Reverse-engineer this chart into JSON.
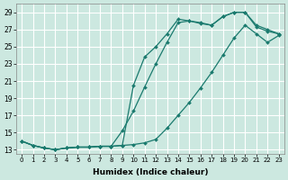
{
  "xlabel": "Humidex (Indice chaleur)",
  "bg_color": "#cce8e0",
  "grid_color": "#ffffff",
  "line_color": "#1a7a6e",
  "xlim": [
    -0.5,
    23.5
  ],
  "ylim": [
    12.5,
    30.0
  ],
  "xticks": [
    0,
    1,
    2,
    3,
    4,
    5,
    6,
    7,
    8,
    9,
    10,
    11,
    12,
    13,
    14,
    15,
    16,
    17,
    18,
    19,
    20,
    21,
    22,
    23
  ],
  "yticks": [
    13,
    15,
    17,
    19,
    21,
    23,
    25,
    27,
    29
  ],
  "line1_x": [
    0,
    1,
    2,
    3,
    4,
    5,
    6,
    7,
    8,
    9,
    10,
    11,
    12,
    13,
    14,
    15,
    16,
    17,
    18,
    19,
    20,
    21,
    22,
    23
  ],
  "line1_y": [
    14.0,
    13.5,
    13.2,
    13.0,
    13.2,
    13.3,
    13.3,
    13.4,
    13.4,
    13.5,
    13.6,
    13.8,
    14.2,
    15.5,
    17.0,
    18.5,
    20.2,
    22.0,
    24.0,
    26.0,
    27.5,
    26.5,
    25.5,
    26.3
  ],
  "line2_x": [
    0,
    1,
    2,
    3,
    4,
    5,
    6,
    7,
    8,
    9,
    10,
    11,
    12,
    13,
    14,
    15,
    16,
    17,
    18,
    19,
    20,
    21,
    22,
    23
  ],
  "line2_y": [
    14.0,
    13.5,
    13.2,
    13.0,
    13.2,
    13.3,
    13.3,
    13.4,
    13.4,
    15.2,
    17.5,
    20.3,
    23.0,
    25.5,
    27.8,
    28.0,
    27.8,
    27.5,
    28.5,
    29.0,
    29.0,
    27.5,
    27.0,
    26.5
  ],
  "line3_x": [
    0,
    1,
    2,
    3,
    4,
    5,
    6,
    7,
    8,
    9,
    10,
    11,
    12,
    13,
    14,
    15,
    16,
    17,
    18,
    19,
    20,
    21,
    22,
    23
  ],
  "line3_y": [
    14.0,
    13.5,
    13.2,
    13.0,
    13.2,
    13.3,
    13.3,
    13.4,
    13.4,
    13.5,
    20.5,
    23.8,
    25.0,
    26.5,
    28.2,
    28.0,
    27.7,
    27.5,
    28.5,
    29.0,
    29.0,
    27.3,
    26.8,
    26.5
  ]
}
